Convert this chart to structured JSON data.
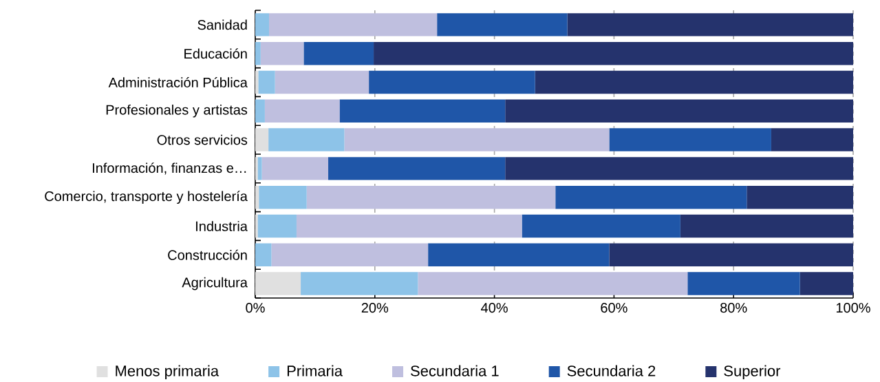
{
  "chart_data": {
    "type": "bar",
    "orientation": "horizontal",
    "stacked": true,
    "categories": [
      "Sanidad",
      "Educación",
      "Administración Pública",
      "Profesionales y artistas",
      "Otros servicios",
      "Información, finanzas e…",
      "Comercio, transporte y hostelería",
      "Industria",
      "Construcción",
      "Agricultura"
    ],
    "series": [
      {
        "name": "Menos primaria",
        "color": "#e0e0e0",
        "values": [
          0,
          0,
          0.5,
          0,
          2.2,
          0.4,
          0.6,
          0.4,
          0,
          7.6
        ]
      },
      {
        "name": "Primaria",
        "color": "#8dc3e8",
        "values": [
          2.3,
          0.9,
          2.8,
          1.6,
          12.7,
          0.7,
          8.0,
          6.5,
          2.7,
          19.6
        ]
      },
      {
        "name": "Secundaria 1",
        "color": "#bfbfdf",
        "values": [
          28.1,
          7.2,
          15.7,
          12.5,
          44.3,
          11.1,
          41.6,
          37.7,
          26.2,
          45.1
        ]
      },
      {
        "name": "Secundaria 2",
        "color": "#1f56a8",
        "values": [
          21.8,
          11.7,
          27.8,
          27.7,
          27.1,
          29.6,
          32.0,
          26.5,
          30.3,
          18.8
        ]
      },
      {
        "name": "Superior",
        "color": "#25336d",
        "values": [
          47.8,
          80.2,
          53.2,
          58.2,
          13.7,
          58.2,
          17.8,
          28.9,
          40.8,
          8.9
        ]
      }
    ],
    "xlim": [
      0,
      100
    ],
    "xticks": [
      {
        "value": 0,
        "label": "0%"
      },
      {
        "value": 20,
        "label": "20%"
      },
      {
        "value": 40,
        "label": "40%"
      },
      {
        "value": 60,
        "label": "60%"
      },
      {
        "value": 80,
        "label": "80%"
      },
      {
        "value": 100,
        "label": "100%"
      }
    ],
    "grid": "x",
    "legend": "bottom"
  }
}
